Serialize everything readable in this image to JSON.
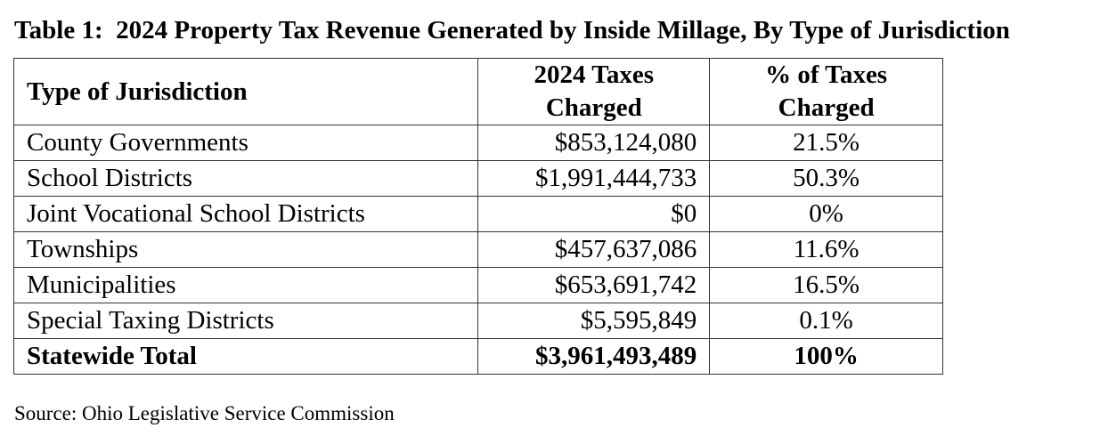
{
  "title": "Table 1:  2024 Property Tax Revenue Generated by Inside Millage, By Type of Jurisdiction",
  "table": {
    "headers": {
      "jurisdiction": "Type of Jurisdiction",
      "taxes_line1": "2024 Taxes",
      "taxes_line2": "Charged",
      "pct_line1": "% of Taxes",
      "pct_line2": "Charged"
    },
    "rows": [
      {
        "name": "County Governments",
        "taxes": "$853,124,080",
        "pct": "21.5%"
      },
      {
        "name": "School Districts",
        "taxes": "$1,991,444,733",
        "pct": "50.3%"
      },
      {
        "name": "Joint Vocational School Districts",
        "taxes": "$0",
        "pct": "0%"
      },
      {
        "name": "Townships",
        "taxes": "$457,637,086",
        "pct": "11.6%"
      },
      {
        "name": "Municipalities",
        "taxes": "$653,691,742",
        "pct": "16.5%"
      },
      {
        "name": "Special Taxing Districts",
        "taxes": "$5,595,849",
        "pct": "0.1%"
      }
    ],
    "total": {
      "name": "Statewide Total",
      "taxes": "$3,961,493,489",
      "pct": "100%"
    }
  },
  "source": "Source: Ohio Legislative Service Commission"
}
